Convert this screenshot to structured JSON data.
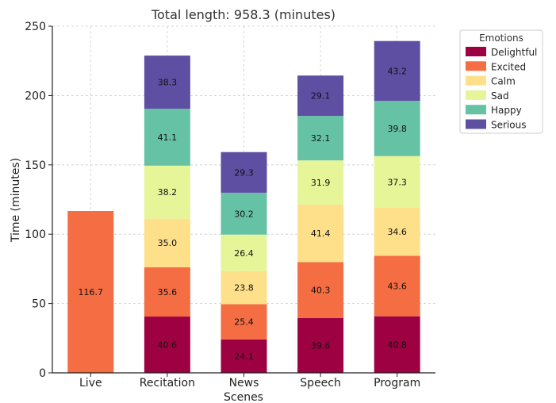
{
  "chart_data": {
    "type": "bar",
    "stacked": true,
    "title": "Total length: 958.3 (minutes)",
    "xlabel": "Scenes",
    "ylabel": "Time (minutes)",
    "ylim": [
      0,
      250
    ],
    "yticks": [
      0,
      50,
      100,
      150,
      200,
      250
    ],
    "grid": true,
    "legend": {
      "title": "Emotions",
      "placement": "top-right outside"
    },
    "categories": [
      "Live",
      "Recitation",
      "News",
      "Speech",
      "Program"
    ],
    "series": [
      {
        "name": "Delightful",
        "color": "#9e0142",
        "values": [
          0,
          40.6,
          24.1,
          39.6,
          40.8
        ]
      },
      {
        "name": "Excited",
        "color": "#f46d43",
        "values": [
          116.7,
          35.6,
          25.4,
          40.3,
          43.6
        ]
      },
      {
        "name": "Calm",
        "color": "#fee08b",
        "values": [
          0,
          35.0,
          23.8,
          41.4,
          34.6
        ]
      },
      {
        "name": "Sad",
        "color": "#e6f598",
        "values": [
          0,
          38.2,
          26.4,
          31.9,
          37.3
        ]
      },
      {
        "name": "Happy",
        "color": "#66c2a5",
        "values": [
          0,
          41.1,
          30.2,
          32.1,
          39.8
        ]
      },
      {
        "name": "Serious",
        "color": "#5e4fa2",
        "values": [
          0,
          38.3,
          29.3,
          29.1,
          43.2
        ]
      }
    ]
  }
}
